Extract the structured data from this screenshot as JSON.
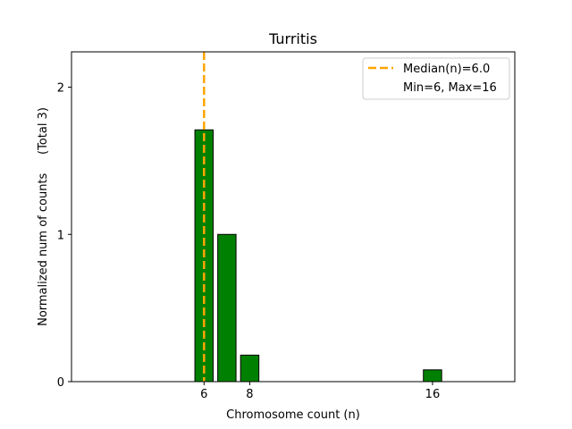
{
  "chart_data": {
    "type": "bar",
    "title": "Turritis",
    "xlabel": "Chromosome count (n)",
    "ylabel": "Normalized num of counts     (Total 3)",
    "xlim": [
      0.2,
      19.6
    ],
    "ylim": [
      0,
      2.24
    ],
    "xticks": [
      6,
      8,
      16
    ],
    "yticks": [
      0,
      1,
      2
    ],
    "bar_width": 0.8,
    "bar_color": "#008000",
    "bar_edge_color": "#000000",
    "bars": [
      {
        "x": 6,
        "value": 1.71
      },
      {
        "x": 7,
        "value": 1.0
      },
      {
        "x": 8,
        "value": 0.18
      },
      {
        "x": 16,
        "value": 0.08
      }
    ],
    "median_line": {
      "x": 6,
      "color": "#FFA500",
      "style": "dashed"
    },
    "legend": {
      "placement": "top-right",
      "entries": [
        "Median(n)=6.0",
        "Min=6, Max=16"
      ]
    },
    "grid": false
  }
}
